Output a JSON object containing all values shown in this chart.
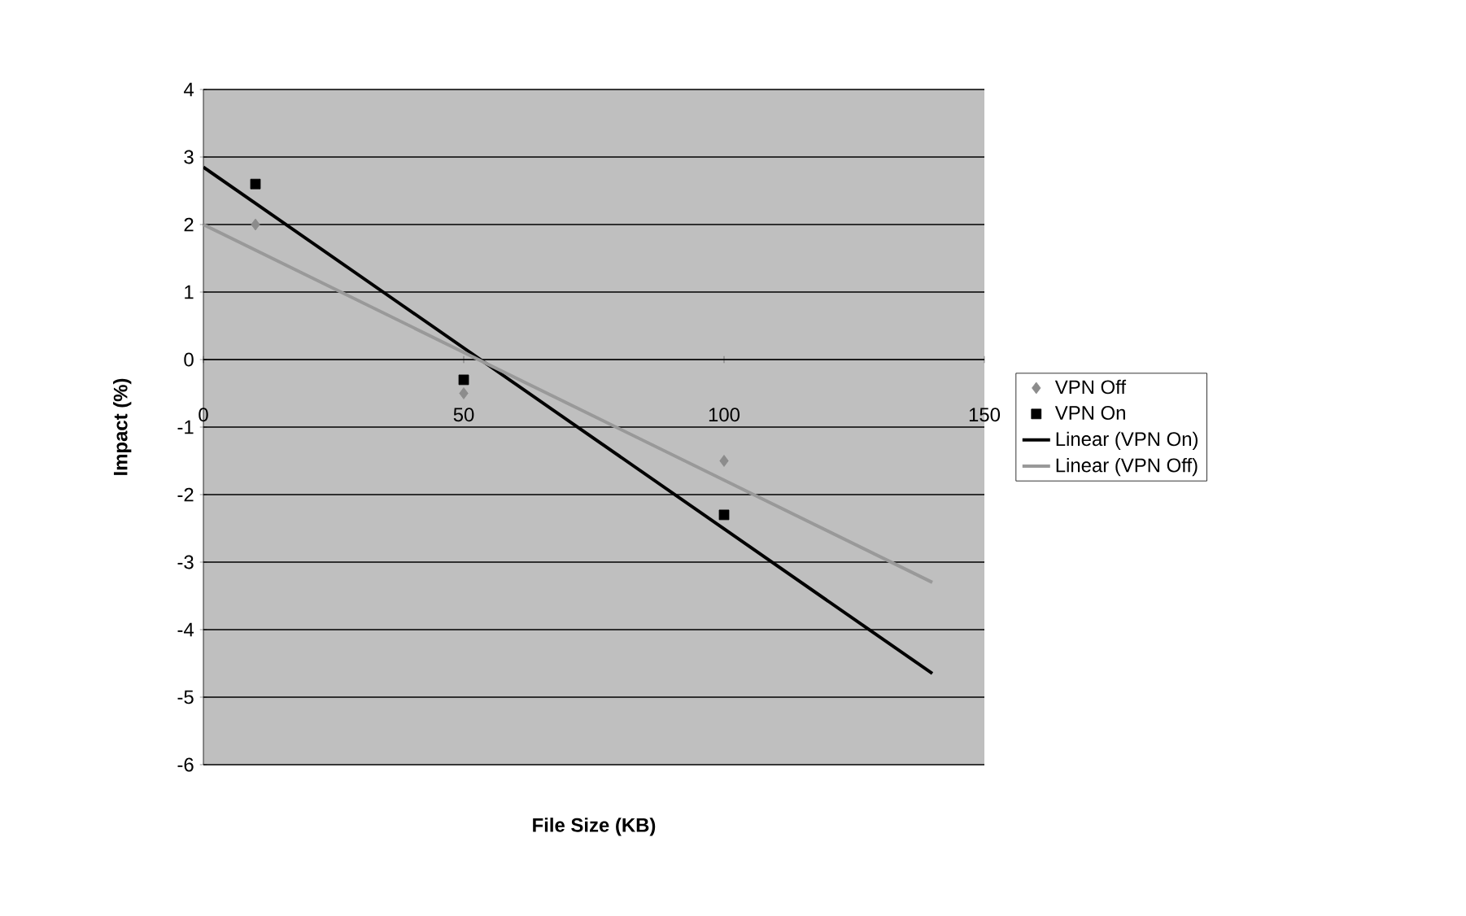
{
  "chart_data": {
    "type": "scatter",
    "xlabel": "File Size (KB)",
    "ylabel": "Impact (%)",
    "xlim": [
      0,
      150
    ],
    "ylim": [
      -6,
      4
    ],
    "xticks": [
      0,
      50,
      100,
      150
    ],
    "yticks": [
      -6,
      -5,
      -4,
      -3,
      -2,
      -1,
      0,
      1,
      2,
      3,
      4
    ],
    "grid": "y",
    "legend": "right",
    "series": [
      {
        "name": "VPN Off",
        "color": "#8c8c8c",
        "marker": "diamond",
        "x": [
          10,
          50,
          100
        ],
        "values": [
          2.0,
          -0.5,
          -1.5
        ]
      },
      {
        "name": "VPN On",
        "color": "#000000",
        "marker": "square",
        "x": [
          10,
          50,
          100
        ],
        "values": [
          2.6,
          -0.3,
          -2.3
        ]
      },
      {
        "name": "Linear (VPN On)",
        "type": "line",
        "color": "#000000",
        "marker": "none",
        "line_style": "solid",
        "x": [
          0,
          140
        ],
        "values": [
          2.85,
          -4.65
        ]
      },
      {
        "name": "Linear (VPN Off)",
        "type": "line",
        "color": "#999999",
        "marker": "none",
        "line_style": "solid",
        "x": [
          0,
          140
        ],
        "values": [
          2.0,
          -3.3
        ]
      }
    ]
  }
}
